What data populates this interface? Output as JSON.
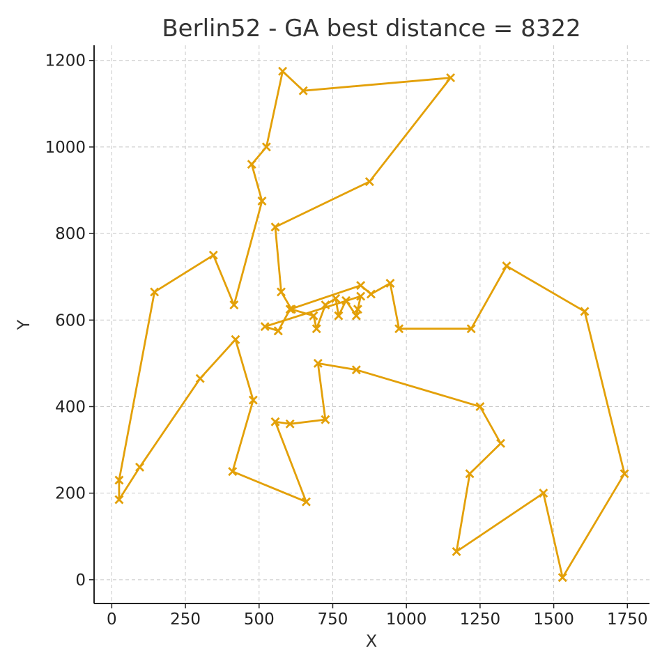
{
  "chart_data": {
    "type": "line",
    "title": "Berlin52 - GA best distance = 8322",
    "xlabel": "X",
    "ylabel": "Y",
    "xlim": [
      -60,
      1825
    ],
    "ylim": [
      -55,
      1235
    ],
    "xticks": [
      0,
      250,
      500,
      750,
      1000,
      1250,
      1500,
      1750
    ],
    "yticks": [
      0,
      200,
      400,
      600,
      800,
      1000,
      1200
    ],
    "grid": true,
    "marker": "x",
    "line_color": "#E3A008",
    "series": [
      {
        "x": [
          565,
          605,
          845,
          880,
          945,
          975,
          1220,
          1340,
          1605,
          1740,
          1530,
          1465,
          1170,
          1215,
          1320,
          1250,
          830,
          700,
          725,
          605,
          555,
          660,
          410,
          480,
          420,
          300,
          95,
          25,
          25,
          145,
          345,
          415,
          510,
          475,
          525,
          580,
          650,
          1150,
          875,
          555,
          575,
          610,
          685,
          695,
          725,
          760,
          770,
          795,
          830,
          835,
          845,
          520,
          565
        ],
        "y": [
          575,
          625,
          680,
          660,
          685,
          580,
          580,
          725,
          620,
          245,
          5,
          200,
          65,
          245,
          315,
          400,
          485,
          500,
          370,
          360,
          365,
          180,
          250,
          415,
          555,
          465,
          260,
          185,
          230,
          665,
          750,
          635,
          875,
          960,
          1000,
          1175,
          1130,
          1160,
          920,
          815,
          665,
          625,
          610,
          580,
          635,
          650,
          610,
          645,
          610,
          625,
          655,
          585,
          575
        ]
      }
    ]
  }
}
